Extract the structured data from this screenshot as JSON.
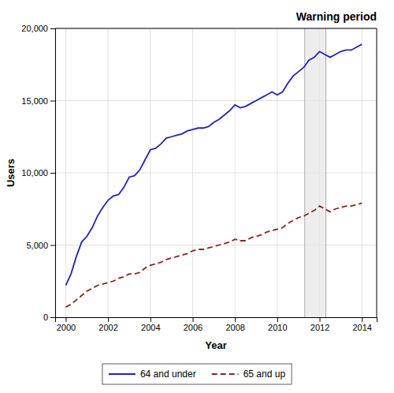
{
  "chart_data": {
    "type": "line",
    "title": "Warning period",
    "xlabel": "Year",
    "ylabel": "Users",
    "xlim": [
      1999.5,
      2014.7
    ],
    "ylim": [
      0,
      20000
    ],
    "xticks": [
      2000,
      2002,
      2004,
      2006,
      2008,
      2010,
      2012,
      2014
    ],
    "yticks": [
      0,
      {
        "value": 5000,
        "label": "5,000"
      },
      {
        "value": 10000,
        "label": "10,000"
      },
      {
        "value": 15000,
        "label": "15,000"
      },
      {
        "value": 20000,
        "label": "20,000"
      }
    ],
    "grid": true,
    "legend": "bottom",
    "shaded_region": [
      2011.3,
      2012.3
    ],
    "x": [
      2000.0,
      2000.25,
      2000.5,
      2000.75,
      2001.0,
      2001.25,
      2001.5,
      2001.75,
      2002.0,
      2002.25,
      2002.5,
      2002.75,
      2003.0,
      2003.25,
      2003.5,
      2003.75,
      2004.0,
      2004.25,
      2004.5,
      2004.75,
      2005.0,
      2005.25,
      2005.5,
      2005.75,
      2006.0,
      2006.25,
      2006.5,
      2006.75,
      2007.0,
      2007.25,
      2007.5,
      2007.75,
      2008.0,
      2008.25,
      2008.5,
      2008.75,
      2009.0,
      2009.25,
      2009.5,
      2009.75,
      2010.0,
      2010.25,
      2010.5,
      2010.75,
      2011.0,
      2011.25,
      2011.5,
      2011.75,
      2012.0,
      2012.25,
      2012.5,
      2012.75,
      2013.0,
      2013.25,
      2013.5,
      2013.75,
      2014.0
    ],
    "series": [
      {
        "name": "64 and under",
        "color": "#2222BB",
        "line_style": "solid",
        "values": [
          2200,
          3000,
          4200,
          5200,
          5600,
          6200,
          7000,
          7600,
          8100,
          8400,
          8500,
          9000,
          9700,
          9800,
          10200,
          10900,
          11600,
          11700,
          12000,
          12400,
          12500,
          12600,
          12700,
          12900,
          13000,
          13100,
          13100,
          13200,
          13500,
          13700,
          14000,
          14300,
          14700,
          14500,
          14600,
          14800,
          15000,
          15200,
          15400,
          15600,
          15400,
          15600,
          16200,
          16700,
          17000,
          17300,
          17800,
          18000,
          18400,
          18200,
          18000,
          18200,
          18400,
          18500,
          18500,
          18700,
          18900
        ]
      },
      {
        "name": "65 and up",
        "color": "#8B2222",
        "line_style": "dashed",
        "values": [
          700,
          900,
          1200,
          1500,
          1800,
          2000,
          2200,
          2300,
          2400,
          2500,
          2700,
          2800,
          3000,
          3000,
          3100,
          3400,
          3600,
          3700,
          3800,
          4000,
          4100,
          4200,
          4300,
          4400,
          4600,
          4700,
          4700,
          4800,
          4900,
          5000,
          5100,
          5200,
          5400,
          5300,
          5300,
          5500,
          5600,
          5700,
          5900,
          6000,
          6100,
          6200,
          6500,
          6700,
          6900,
          7000,
          7200,
          7400,
          7700,
          7500,
          7300,
          7500,
          7600,
          7700,
          7700,
          7800,
          7900
        ]
      }
    ]
  }
}
